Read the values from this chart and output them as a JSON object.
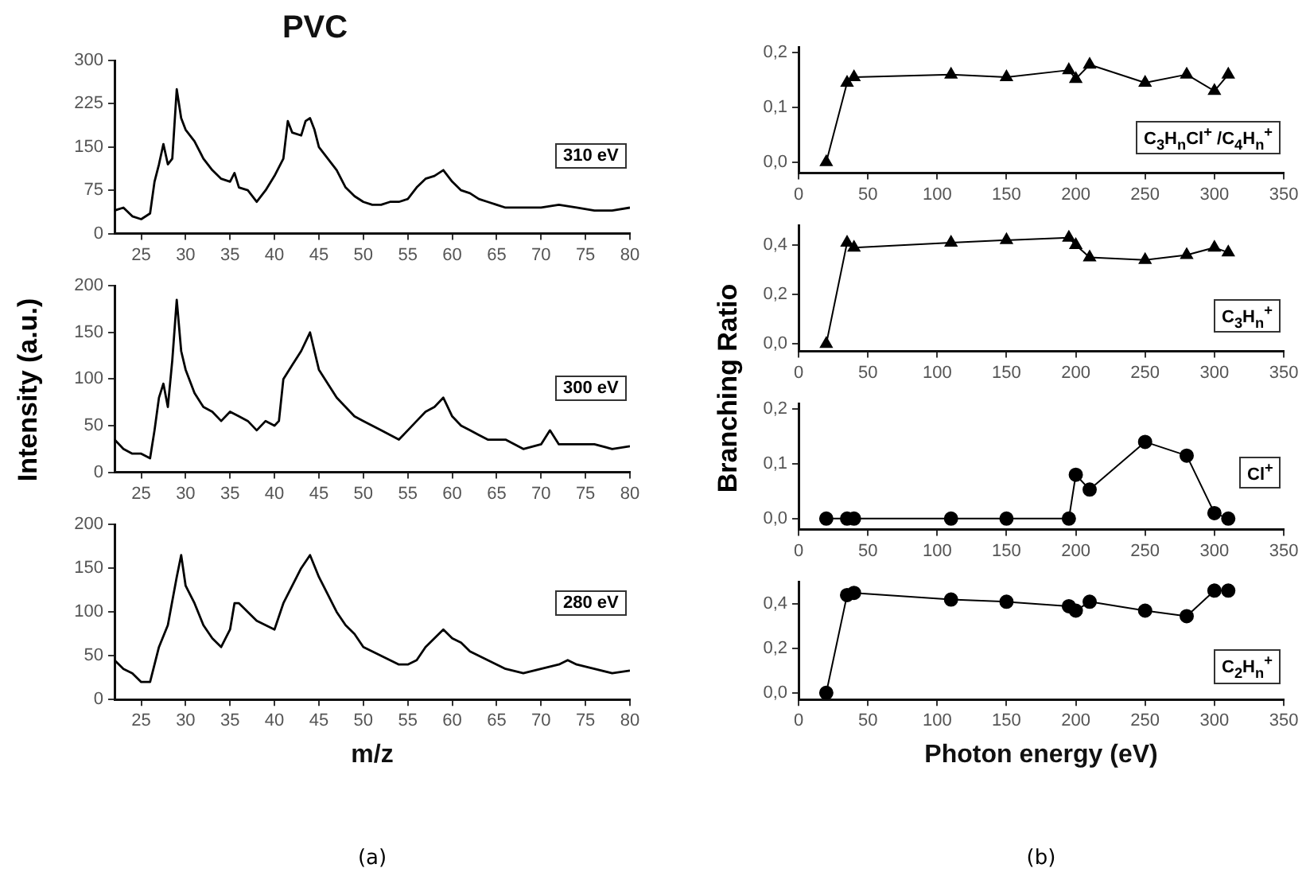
{
  "chart_data": [
    {
      "type": "line",
      "title": "PVC",
      "annotations": [
        "310 eV"
      ],
      "marker": "none",
      "xlim": [
        22,
        80
      ],
      "xticks": [
        25,
        30,
        35,
        40,
        45,
        50,
        55,
        60,
        65,
        70,
        75,
        80
      ],
      "ylim": [
        0,
        300
      ],
      "yticks": [
        0,
        75,
        150,
        225,
        300
      ],
      "series": [
        {
          "color": "#000000",
          "x": [
            22,
            23,
            24,
            25,
            26,
            26.5,
            27,
            27.5,
            28,
            28.5,
            29,
            29.5,
            30,
            31,
            32,
            33,
            34,
            35,
            35.5,
            36,
            37,
            38,
            39,
            40,
            41,
            41.5,
            42,
            43,
            43.5,
            44,
            44.5,
            45,
            46,
            47,
            48,
            49,
            50,
            51,
            52,
            53,
            54,
            55,
            56,
            57,
            58,
            59,
            60,
            61,
            62,
            63,
            64,
            65,
            66,
            68,
            70,
            72,
            74,
            76,
            78,
            80
          ],
          "values": [
            40,
            45,
            30,
            25,
            35,
            90,
            120,
            155,
            120,
            130,
            250,
            200,
            180,
            160,
            130,
            110,
            95,
            90,
            105,
            80,
            75,
            55,
            75,
            100,
            130,
            195,
            175,
            170,
            195,
            200,
            180,
            150,
            130,
            110,
            80,
            65,
            55,
            50,
            50,
            55,
            55,
            60,
            80,
            95,
            100,
            110,
            90,
            75,
            70,
            60,
            55,
            50,
            45,
            45,
            45,
            50,
            45,
            40,
            40,
            45
          ]
        }
      ]
    },
    {
      "type": "line",
      "ylabel": "Intensity (a.u.)",
      "annotations": [
        "300 eV"
      ],
      "marker": "none",
      "xlim": [
        22,
        80
      ],
      "xticks": [
        25,
        30,
        35,
        40,
        45,
        50,
        55,
        60,
        65,
        70,
        75,
        80
      ],
      "ylim": [
        0,
        200
      ],
      "yticks": [
        0,
        50,
        100,
        150,
        200
      ],
      "series": [
        {
          "color": "#000000",
          "x": [
            22,
            23,
            24,
            25,
            26,
            26.5,
            27,
            27.5,
            28,
            28.5,
            29,
            29.5,
            30,
            31,
            32,
            33,
            34,
            35,
            36,
            37,
            38,
            39,
            40,
            40.5,
            41,
            42,
            43,
            44,
            44.5,
            45,
            46,
            47,
            48,
            49,
            50,
            52,
            54,
            55,
            56,
            57,
            58,
            59,
            60,
            61,
            62,
            63,
            64,
            66,
            68,
            70,
            71,
            72,
            74,
            76,
            78,
            80
          ],
          "values": [
            35,
            25,
            20,
            20,
            15,
            45,
            80,
            95,
            70,
            120,
            185,
            130,
            110,
            85,
            70,
            65,
            55,
            65,
            60,
            55,
            45,
            55,
            50,
            55,
            100,
            115,
            130,
            150,
            130,
            110,
            95,
            80,
            70,
            60,
            55,
            45,
            35,
            45,
            55,
            65,
            70,
            80,
            60,
            50,
            45,
            40,
            35,
            35,
            25,
            30,
            45,
            30,
            30,
            30,
            25,
            28
          ]
        }
      ]
    },
    {
      "type": "line",
      "xlabel": "m/z",
      "annotations": [
        "280 eV",
        "(a)"
      ],
      "marker": "none",
      "xlim": [
        22,
        80
      ],
      "xticks": [
        25,
        30,
        35,
        40,
        45,
        50,
        55,
        60,
        65,
        70,
        75,
        80
      ],
      "ylim": [
        0,
        200
      ],
      "yticks": [
        0,
        50,
        100,
        150,
        200
      ],
      "series": [
        {
          "color": "#000000",
          "x": [
            22,
            23,
            24,
            25,
            26,
            27,
            28,
            29,
            29.5,
            30,
            31,
            32,
            33,
            34,
            35,
            35.5,
            36,
            37,
            38,
            39,
            40,
            41,
            42,
            43,
            44,
            45,
            46,
            47,
            48,
            49,
            50,
            52,
            54,
            55,
            56,
            57,
            58,
            59,
            60,
            61,
            62,
            63,
            64,
            66,
            68,
            70,
            72,
            73,
            74,
            76,
            78,
            80
          ],
          "values": [
            45,
            35,
            30,
            20,
            20,
            60,
            85,
            140,
            165,
            130,
            110,
            85,
            70,
            60,
            80,
            110,
            110,
            100,
            90,
            85,
            80,
            110,
            130,
            150,
            165,
            140,
            120,
            100,
            85,
            75,
            60,
            50,
            40,
            40,
            45,
            60,
            70,
            80,
            70,
            65,
            55,
            50,
            45,
            35,
            30,
            35,
            40,
            45,
            40,
            35,
            30,
            33
          ]
        }
      ]
    },
    {
      "type": "line",
      "annotations": [
        "C$_{3}$H$_{n}$Cl$^{+}$ /C$_{4}$H$_{n}$$^{+}$"
      ],
      "marker": "triangle",
      "xlim": [
        0,
        350
      ],
      "xticks": [
        0,
        50,
        100,
        150,
        200,
        250,
        300,
        350
      ],
      "ylim": [
        -0.02,
        0.21
      ],
      "yticks": [
        {
          "value": 0,
          "label": "0,0"
        },
        {
          "value": 0.1,
          "label": "0,1"
        },
        {
          "value": 0.2,
          "label": "0,2"
        }
      ],
      "series": [
        {
          "color": "#000000",
          "x": [
            20,
            35,
            40,
            110,
            150,
            195,
            200,
            210,
            250,
            280,
            300,
            310
          ],
          "values": [
            0,
            0.145,
            0.155,
            0.16,
            0.155,
            0.168,
            0.152,
            0.178,
            0.145,
            0.16,
            0.13,
            0.16
          ]
        }
      ]
    },
    {
      "type": "line",
      "annotations": [
        "C$_{3}$H$_{n}$$^{+}$"
      ],
      "marker": "triangle",
      "xlim": [
        0,
        350
      ],
      "xticks": [
        0,
        50,
        100,
        150,
        200,
        250,
        300,
        350
      ],
      "ylim": [
        -0.03,
        0.48
      ],
      "yticks": [
        {
          "value": 0,
          "label": "0,0"
        },
        {
          "value": 0.2,
          "label": "0,2"
        },
        {
          "value": 0.4,
          "label": "0,4"
        }
      ],
      "series": [
        {
          "color": "#000000",
          "x": [
            20,
            35,
            40,
            110,
            150,
            195,
            200,
            210,
            250,
            280,
            300,
            310
          ],
          "values": [
            0,
            0.41,
            0.39,
            0.41,
            0.42,
            0.43,
            0.4,
            0.35,
            0.34,
            0.36,
            0.39,
            0.37
          ]
        }
      ]
    },
    {
      "type": "line",
      "ylabel": "Branching Ratio",
      "annotations": [
        "Cl$^{+}$"
      ],
      "marker": "circle",
      "xlim": [
        0,
        350
      ],
      "xticks": [
        0,
        50,
        100,
        150,
        200,
        250,
        300,
        350
      ],
      "ylim": [
        -0.02,
        0.21
      ],
      "yticks": [
        {
          "value": 0,
          "label": "0,0"
        },
        {
          "value": 0.1,
          "label": "0,1"
        },
        {
          "value": 0.2,
          "label": "0,2"
        }
      ],
      "series": [
        {
          "color": "#000000",
          "x": [
            20,
            35,
            40,
            110,
            150,
            195,
            200,
            210,
            250,
            280,
            300,
            310
          ],
          "values": [
            0,
            0,
            0,
            0,
            0,
            0,
            0.08,
            0.053,
            0.14,
            0.115,
            0.01,
            0
          ]
        }
      ]
    },
    {
      "type": "line",
      "xlabel": "Photon energy (eV)",
      "annotations": [
        "C$_{2}$H$_{n}$$^{+}$",
        "(b)"
      ],
      "marker": "circle",
      "xlim": [
        0,
        350
      ],
      "xticks": [
        0,
        50,
        100,
        150,
        200,
        250,
        300,
        350
      ],
      "ylim": [
        -0.03,
        0.5
      ],
      "yticks": [
        {
          "value": 0,
          "label": "0,0"
        },
        {
          "value": 0.2,
          "label": "0,2"
        },
        {
          "value": 0.4,
          "label": "0,4"
        }
      ],
      "series": [
        {
          "color": "#000000",
          "x": [
            20,
            35,
            40,
            110,
            150,
            195,
            200,
            210,
            250,
            280,
            300,
            310
          ],
          "values": [
            0,
            0.44,
            0.45,
            0.42,
            0.41,
            0.39,
            0.37,
            0.41,
            0.37,
            0.345,
            0.46,
            0.46
          ]
        }
      ]
    }
  ]
}
